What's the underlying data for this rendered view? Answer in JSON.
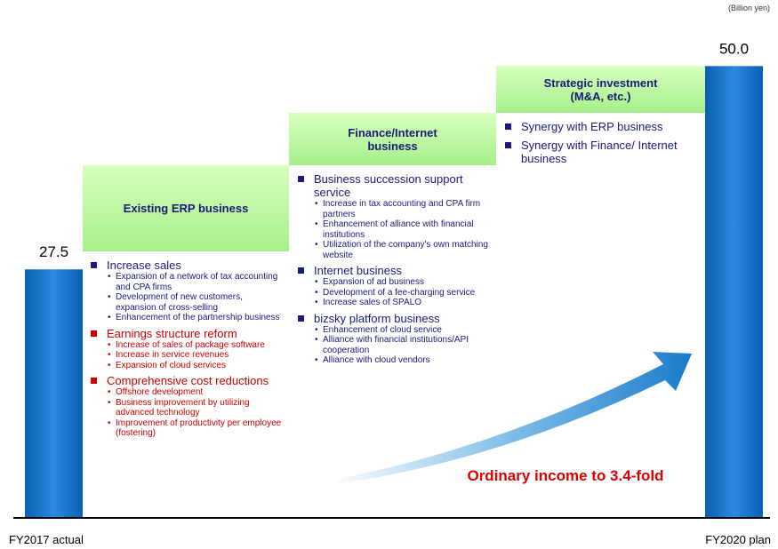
{
  "chart_data": {
    "type": "bar",
    "unit": "(Billion yen)",
    "categories": [
      "FY2017 actual",
      "FY2020 plan"
    ],
    "values": [
      27.5,
      50
    ],
    "value_labels": [
      "27.5",
      "50.0"
    ],
    "color": "#1a7ccc",
    "ylim": [
      0,
      52
    ],
    "annotation": "Ordinary income to 3.4-fold",
    "panels": [
      {
        "title": "Existing ERP business",
        "items": [
          {
            "heading": "Increase sales",
            "color": "#1a1a7a",
            "subs": [
              "Expansion of a network of tax accounting and CPA firms",
              "Development of new customers, expansion of cross-selling",
              "Enhancement of the partnership business"
            ]
          },
          {
            "heading": "Earnings structure reform",
            "color": "#cc0000",
            "subs": [
              "Increase of sales of package software",
              "Increase in service revenues",
              "Expansion of cloud services"
            ]
          },
          {
            "heading": "Comprehensive cost reductions",
            "color": "#cc0000",
            "subs": [
              "Offshore development",
              "Business improvement by utilizing advanced technology",
              "Improvement of productivity per employee (fostering)"
            ]
          }
        ]
      },
      {
        "title": "Finance/Internet business",
        "items": [
          {
            "heading": "Business succession support service",
            "color": "#1a1a7a",
            "subs": [
              "Increase in tax accounting and CPA firm partners",
              "Enhancement of alliance with financial institutions",
              "Utilization of the company's own matching  website"
            ]
          },
          {
            "heading": "Internet business",
            "color": "#1a1a7a",
            "subs": [
              "Expansion of ad business",
              "Development of a fee-charging service",
              "Increase sales of SPALO"
            ]
          },
          {
            "heading": "bizsky platform business",
            "color": "#1a1a7a",
            "subs": [
              "Enhancement of cloud service",
              "Alliance with financial institutions/API cooperation",
              "Alliance with cloud vendors"
            ]
          }
        ]
      },
      {
        "title": "Strategic investment (M&A, etc.)",
        "items": [
          {
            "heading": "Synergy with ERP business",
            "color": "#1a1a7a",
            "subs": []
          },
          {
            "heading": "Synergy with Finance/ Internet business",
            "color": "#1a1a7a",
            "subs": []
          }
        ]
      }
    ]
  }
}
